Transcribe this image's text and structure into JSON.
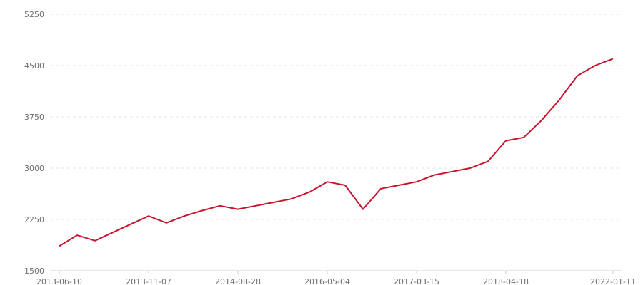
{
  "chart_data": {
    "type": "line",
    "title": "",
    "xlabel": "",
    "ylabel": "",
    "ylim": [
      1500,
      5250
    ],
    "yticks": [
      "1500",
      "2250",
      "3000",
      "3750",
      "4500",
      "5250"
    ],
    "grid": "horizontal dashed",
    "legend": "none",
    "color": "#c8142d",
    "x_tick_labels": [
      "2013-06-10",
      "",
      "",
      "",
      "",
      "2013-11-07",
      "",
      "",
      "",
      "",
      "2014-08-28",
      "",
      "",
      "",
      "",
      "2016-05-04",
      "",
      "",
      "",
      "",
      "2017-03-15",
      "",
      "",
      "",
      "",
      "2018-04-18",
      "",
      "",
      "",
      "",
      "",
      "2022-01-11"
    ],
    "values": [
      1860,
      2020,
      1940,
      2060,
      2180,
      2300,
      2200,
      2300,
      2380,
      2450,
      2400,
      2450,
      2500,
      2550,
      2650,
      2800,
      2750,
      2400,
      2700,
      2750,
      2800,
      2900,
      2950,
      3000,
      3100,
      3400,
      3450,
      3700,
      4000,
      4350,
      4500,
      4600
    ]
  }
}
